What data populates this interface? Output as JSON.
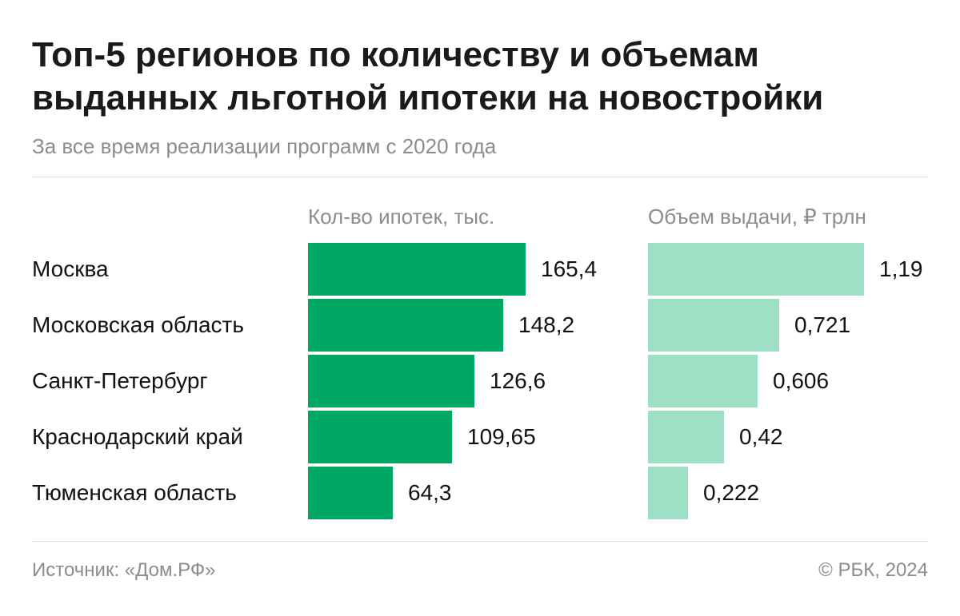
{
  "chart_data": {
    "type": "bar",
    "title": "Топ-5 регионов по количеству и объемам выданных льготной ипотеки на новостройки",
    "subtitle": "За все время реализации программ с 2020 года",
    "categories": [
      "Москва",
      "Московская область",
      "Санкт-Петербург",
      "Краснодарский край",
      "Тюменская область"
    ],
    "series": [
      {
        "name": "Кол-во ипотек, тыс.",
        "values": [
          165.4,
          148.2,
          126.6,
          109.65,
          64.3
        ],
        "labels": [
          "165,4",
          "148,2",
          "126,6",
          "109,65",
          "64,3"
        ],
        "color": "#00a864"
      },
      {
        "name": "Объем выдачи, ₽ трлн",
        "values": [
          1.19,
          0.721,
          0.606,
          0.42,
          0.222
        ],
        "labels": [
          "1,19",
          "0,721",
          "0,606",
          "0,42",
          "0,222"
        ],
        "color": "#9de0c5"
      }
    ],
    "orientation": "horizontal"
  },
  "footer": {
    "source": "Источник: «Дом.РФ»",
    "copyright": "© РБК, 2024"
  }
}
